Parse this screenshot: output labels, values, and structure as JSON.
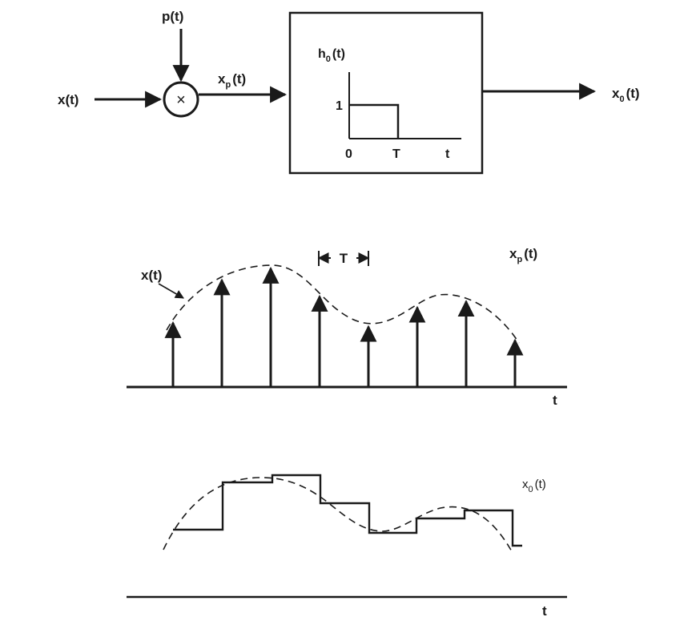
{
  "block_diagram": {
    "input_label": "x(t)",
    "carrier_label": "p(t)",
    "multiplier_symbol": "×",
    "sampled_label": {
      "base": "x",
      "sub": "p",
      "arg": "(t)"
    },
    "output_label": {
      "base": "x",
      "sub": "0",
      "arg": "(t)"
    },
    "filter": {
      "response_label": {
        "base": "h",
        "sub": "0",
        "arg": "(t)"
      },
      "y_tick": "1",
      "x_ticks": [
        "0",
        "T",
        "t"
      ]
    }
  },
  "sampled_plot": {
    "signal_label": "x(t)",
    "series_label": {
      "base": "x",
      "sub": "p",
      "arg": "(t)"
    },
    "spacing_label": "T",
    "axis_label": "t",
    "impulse_count": 8,
    "chart_data": {
      "type": "line",
      "series": [
        {
          "name": "x(t)",
          "style": "dashed"
        },
        {
          "name": "x_p(t)",
          "style": "impulses"
        }
      ]
    }
  },
  "held_plot": {
    "series_label": {
      "base": "x",
      "sub": "0",
      "arg": "(t)"
    },
    "axis_label": "t",
    "chart_data": {
      "type": "line",
      "series": [
        {
          "name": "x(t)",
          "style": "dashed"
        },
        {
          "name": "x_0(t)",
          "style": "staircase"
        }
      ]
    }
  },
  "colors": {
    "ink": "#1a1a1a",
    "background": "#ffffff"
  }
}
